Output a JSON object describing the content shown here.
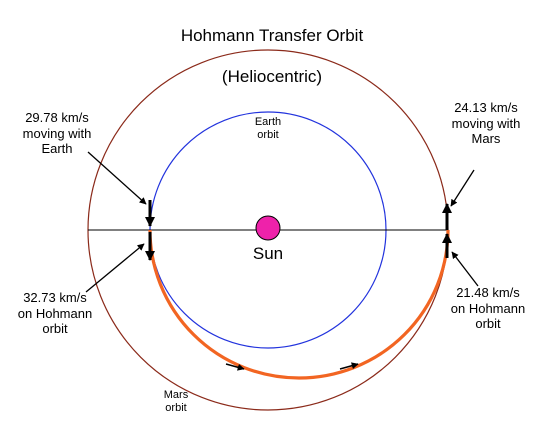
{
  "title_line1": "Hohmann Transfer Orbit",
  "title_line2": "(Heliocentric)",
  "sun_label": "Sun",
  "earth_orbit_label": "Earth\norbit",
  "mars_orbit_label": "Mars\norbit",
  "earth_velocity_label": "29.78 km/s\nmoving with\nEarth",
  "transfer_departure_label": "32.73 km/s\non Hohmann\norbit",
  "mars_velocity_label": "24.13 km/s\nmoving with\nMars",
  "transfer_arrival_label": "21.48 km/s\non Hohmann\norbit",
  "colors": {
    "earth_orbit": "#2233dd",
    "mars_orbit": "#8b2a1a",
    "transfer_orbit": "#f26522",
    "sun_fill": "#ee22aa",
    "arrows": "#000000"
  }
}
